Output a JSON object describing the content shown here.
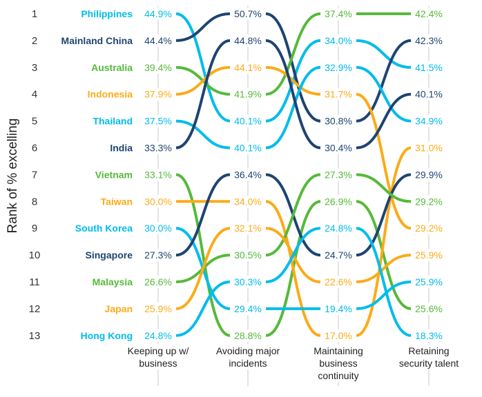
{
  "chart_data": {
    "type": "bump",
    "ylabel": "Rank of % excelling",
    "rank_ticks": [
      "1",
      "2",
      "3",
      "4",
      "5",
      "6",
      "7",
      "8",
      "9",
      "10",
      "11",
      "12",
      "13"
    ],
    "columns": [
      {
        "lines": [
          "Keeping up w/",
          "business"
        ]
      },
      {
        "lines": [
          "Avoiding major",
          "incidents"
        ]
      },
      {
        "lines": [
          "Maintaining",
          "business",
          "continuity"
        ]
      },
      {
        "lines": [
          "Retaining",
          "security talent"
        ]
      }
    ],
    "series": [
      {
        "name": "Philippines",
        "color": "#00bceb",
        "ranks": [
          1,
          5,
          2,
          3
        ],
        "values": [
          "44.9%",
          "40.1%",
          "34.0%",
          "41.5%"
        ]
      },
      {
        "name": "Mainland China",
        "color": "#1e4471",
        "ranks": [
          2,
          1,
          5,
          2
        ],
        "values": [
          "44.4%",
          "50.7%",
          "30.8%",
          "42.3%"
        ]
      },
      {
        "name": "Australia",
        "color": "#56b93a",
        "ranks": [
          3,
          4,
          1,
          1
        ],
        "values": [
          "39.4%",
          "41.9%",
          "37.4%",
          "42.4%"
        ]
      },
      {
        "name": "Indonesia",
        "color": "#fbab18",
        "ranks": [
          4,
          3,
          4,
          9
        ],
        "values": [
          "37.9%",
          "44.1%",
          "31.7%",
          "29.2%"
        ]
      },
      {
        "name": "Thailand",
        "color": "#00bceb",
        "ranks": [
          5,
          6,
          3,
          5
        ],
        "values": [
          "37.5%",
          "40.1%",
          "32.9%",
          "34.9%"
        ]
      },
      {
        "name": "India",
        "color": "#1e4471",
        "ranks": [
          6,
          2,
          6,
          4
        ],
        "values": [
          "33.3%",
          "44.8%",
          "30.4%",
          "40.1%"
        ]
      },
      {
        "name": "Vietnam",
        "color": "#56b93a",
        "ranks": [
          7,
          13,
          8,
          12
        ],
        "values": [
          "33.1%",
          "28.8%",
          "26.9%",
          "25.6%"
        ]
      },
      {
        "name": "Taiwan",
        "color": "#fbab18",
        "ranks": [
          8,
          8,
          13,
          6
        ],
        "values": [
          "30.0%",
          "34.0%",
          "17.0%",
          "31.0%"
        ]
      },
      {
        "name": "South Korea",
        "color": "#00bceb",
        "ranks": [
          9,
          12,
          12,
          11
        ],
        "values": [
          "30.0%",
          "29.4%",
          "19.4%",
          "25.9%"
        ]
      },
      {
        "name": "Singapore",
        "color": "#1e4471",
        "ranks": [
          10,
          7,
          10,
          7
        ],
        "values": [
          "27.3%",
          "36.4%",
          "24.7%",
          "29.9%"
        ]
      },
      {
        "name": "Malaysia",
        "color": "#56b93a",
        "ranks": [
          11,
          10,
          7,
          8
        ],
        "values": [
          "26.6%",
          "30.5%",
          "27.3%",
          "29.2%"
        ]
      },
      {
        "name": "Japan",
        "color": "#fbab18",
        "ranks": [
          12,
          9,
          11,
          10
        ],
        "values": [
          "25.9%",
          "32.1%",
          "22.6%",
          "25.9%"
        ]
      },
      {
        "name": "Hong Kong",
        "color": "#00bceb",
        "ranks": [
          13,
          11,
          9,
          13
        ],
        "values": [
          "24.8%",
          "30.3%",
          "24.8%",
          "18.3%"
        ]
      }
    ]
  }
}
